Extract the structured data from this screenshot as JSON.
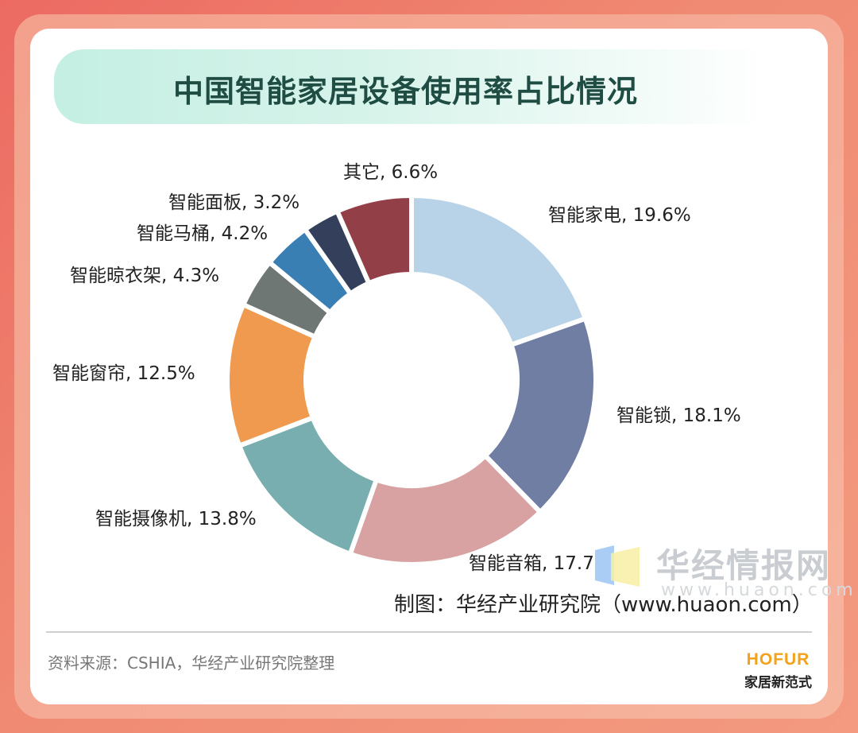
{
  "title": "中国智能家居设备使用率占比情况",
  "chart_data": {
    "type": "pie",
    "donut": true,
    "title": "中国智能家居设备使用率占比情况",
    "unit": "%",
    "slices": [
      {
        "label": "智能家电, 19.6%",
        "name": "智能家电",
        "value": 19.6,
        "color": "#b8d3e8"
      },
      {
        "label": "智能锁, 18.1%",
        "name": "智能锁",
        "value": 18.1,
        "color": "#707ea3"
      },
      {
        "label": "智能音箱, 17.7%",
        "name": "智能音箱",
        "value": 17.7,
        "color": "#d8a2a3"
      },
      {
        "label": "智能摄像机, 13.8%",
        "name": "智能摄像机",
        "value": 13.8,
        "color": "#79aeb0"
      },
      {
        "label": "智能窗帘, 12.5%",
        "name": "智能窗帘",
        "value": 12.5,
        "color": "#ef9a4e"
      },
      {
        "label": "智能晾衣架, 4.3%",
        "name": "智能晾衣架",
        "value": 4.3,
        "color": "#6e7773"
      },
      {
        "label": "智能马桶, 4.2%",
        "name": "智能马桶",
        "value": 4.2,
        "color": "#3a7fb3"
      },
      {
        "label": "智能面板, 3.2%",
        "name": "智能面板",
        "value": 3.2,
        "color": "#343f5c"
      },
      {
        "label": "其它, 6.6%",
        "name": "其它",
        "value": 6.6,
        "color": "#933f48"
      }
    ]
  },
  "watermark": {
    "name": "华经情报网",
    "url": "www.huaon.com"
  },
  "credit": "制图：华经产业研究院（www.huaon.com）",
  "source": "资料来源：CSHIA，华经产业研究院整理",
  "brand": {
    "en": "HOFUR",
    "cn": "家居新范式"
  }
}
